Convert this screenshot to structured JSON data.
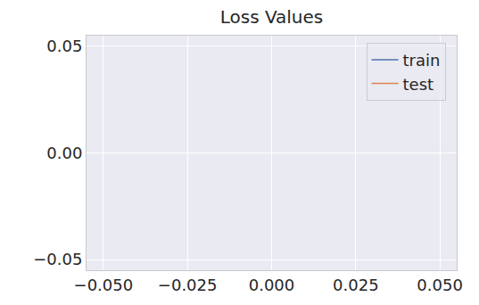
{
  "chart_data": {
    "type": "line",
    "title": "Loss Values",
    "x": [],
    "series": [
      {
        "name": "train",
        "color": "#4c72b0",
        "values": []
      },
      {
        "name": "test",
        "color": "#dd8452",
        "values": []
      }
    ],
    "xlim": [
      -0.055,
      0.055
    ],
    "xticks": [
      {
        "value": -0.05,
        "label": "−0.050"
      },
      {
        "value": -0.025,
        "label": "−0.025"
      },
      {
        "value": 0,
        "label": "0.000"
      },
      {
        "value": 0.025,
        "label": "0.025"
      },
      {
        "value": 0.05,
        "label": "0.050"
      }
    ],
    "ylim": [
      -0.055,
      0.055
    ],
    "yticks": [
      {
        "value": -0.05,
        "label": "−0.05"
      },
      {
        "value": 0,
        "label": "0.00"
      },
      {
        "value": 0.05,
        "label": "0.05"
      }
    ],
    "grid": true,
    "legend": "upper right"
  }
}
